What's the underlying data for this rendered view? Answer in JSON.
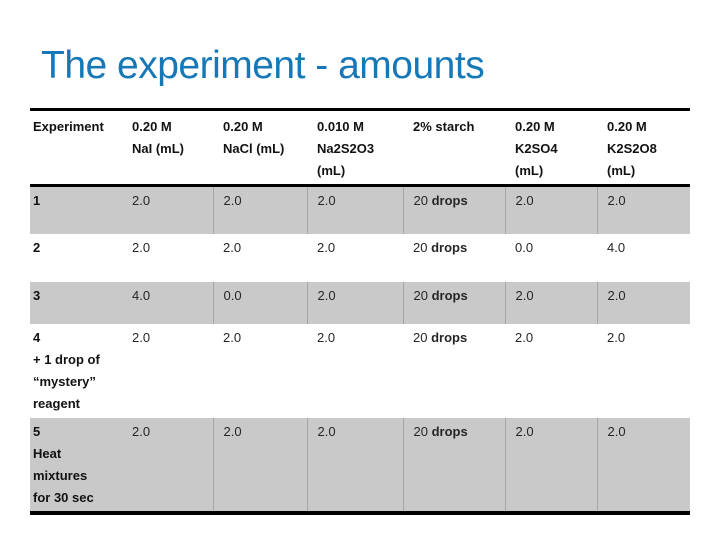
{
  "slide": {
    "title": "The experiment - amounts"
  },
  "colors": {
    "title": "#1778b8",
    "row_band": "#c9c9c9",
    "column_separator": "#a6a6a6",
    "table_border": "#000000"
  },
  "table": {
    "columns": [
      {
        "key": "experiment",
        "label_lines": [
          "Experiment"
        ]
      },
      {
        "key": "nai",
        "label_lines": [
          "0.20 M",
          "NaI (mL)"
        ]
      },
      {
        "key": "nacl",
        "label_lines": [
          "0.20 M",
          "NaCl (mL)"
        ]
      },
      {
        "key": "na2s2o3",
        "label_lines": [
          "0.010 M",
          "Na2S2O3",
          "(mL)"
        ]
      },
      {
        "key": "starch",
        "label_lines": [
          "2% starch"
        ]
      },
      {
        "key": "k2so4",
        "label_lines": [
          "0.20 M",
          "K2SO4",
          "(mL)"
        ]
      },
      {
        "key": "k2s2o8",
        "label_lines": [
          "0.20 M",
          "K2S2O8",
          "(mL)"
        ]
      }
    ],
    "rows": [
      {
        "shaded": true,
        "experiment_lines": [
          "1"
        ],
        "nai_ml": "2.0",
        "nacl_ml": "2.0",
        "na2s2o3_ml": "2.0",
        "starch_amount": "20",
        "starch_unit": "drops",
        "k2so4_ml": "2.0",
        "k2s2o8_ml": "2.0"
      },
      {
        "shaded": false,
        "experiment_lines": [
          "2"
        ],
        "nai_ml": "2.0",
        "nacl_ml": "2.0",
        "na2s2o3_ml": "2.0",
        "starch_amount": "20",
        "starch_unit": "drops",
        "k2so4_ml": "0.0",
        "k2s2o8_ml": "4.0"
      },
      {
        "shaded": true,
        "experiment_lines": [
          "3"
        ],
        "nai_ml": "4.0",
        "nacl_ml": "0.0",
        "na2s2o3_ml": "2.0",
        "starch_amount": "20",
        "starch_unit": "drops",
        "k2so4_ml": "2.0",
        "k2s2o8_ml": "2.0"
      },
      {
        "shaded": false,
        "experiment_lines": [
          "4",
          "+ 1 drop of",
          "“mystery”",
          "reagent"
        ],
        "nai_ml": "2.0",
        "nacl_ml": "2.0",
        "na2s2o3_ml": "2.0",
        "starch_amount": "20",
        "starch_unit": "drops",
        "k2so4_ml": "2.0",
        "k2s2o8_ml": "2.0"
      },
      {
        "shaded": true,
        "experiment_lines": [
          "5",
          "Heat",
          "mixtures",
          "for 30 sec"
        ],
        "nai_ml": "2.0",
        "nacl_ml": "2.0",
        "na2s2o3_ml": "2.0",
        "starch_amount": "20",
        "starch_unit": "drops",
        "k2so4_ml": "2.0",
        "k2s2o8_ml": "2.0"
      }
    ]
  }
}
